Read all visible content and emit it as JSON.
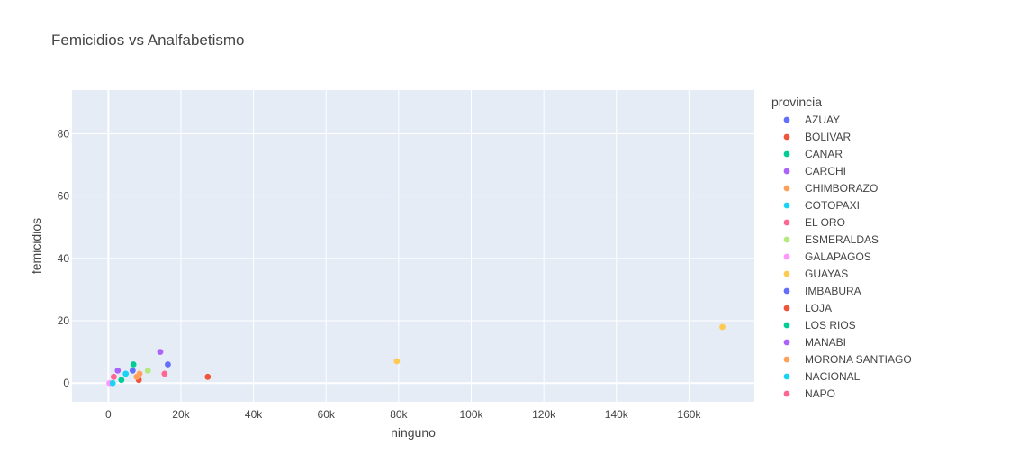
{
  "chart_data": {
    "type": "scatter",
    "title": "Femicidios vs Analfabetismo",
    "xlabel": "ninguno",
    "ylabel": "femicidios",
    "xlim": [
      -10000,
      178000
    ],
    "ylim": [
      -6,
      94
    ],
    "x_ticks": [
      0,
      20000,
      40000,
      60000,
      80000,
      100000,
      120000,
      140000,
      160000
    ],
    "x_tick_labels": [
      "0",
      "20k",
      "40k",
      "60k",
      "80k",
      "100k",
      "120k",
      "140k",
      "160k"
    ],
    "y_ticks": [
      0,
      20,
      40,
      60,
      80
    ],
    "y_tick_labels": [
      "0",
      "20",
      "40",
      "60",
      "80"
    ],
    "grid": true,
    "legend_title": "provincia",
    "legend_position": "right",
    "plot_background": "#E5ECF6",
    "series": [
      {
        "name": "AZUAY",
        "color": "#636EFA",
        "points": [
          [
            6700,
            4
          ]
        ]
      },
      {
        "name": "BOLIVAR",
        "color": "#EF553B",
        "points": [
          [
            27400,
            2
          ]
        ]
      },
      {
        "name": "CANAR",
        "color": "#00CC96",
        "points": [
          [
            6900,
            6
          ]
        ]
      },
      {
        "name": "CARCHI",
        "color": "#AB63FA",
        "points": [
          [
            2600,
            4
          ]
        ]
      },
      {
        "name": "CHIMBORAZO",
        "color": "#FFA15A",
        "points": [
          [
            8600,
            3
          ]
        ]
      },
      {
        "name": "COTOPAXI",
        "color": "#19D3F3",
        "points": [
          [
            4800,
            3
          ]
        ]
      },
      {
        "name": "EL ORO",
        "color": "#FF6692",
        "points": [
          [
            15500,
            3
          ]
        ]
      },
      {
        "name": "ESMERALDAS",
        "color": "#B6E880",
        "points": [
          [
            10900,
            4
          ]
        ]
      },
      {
        "name": "GALAPAGOS",
        "color": "#FF97FF",
        "points": [
          [
            300,
            0
          ]
        ]
      },
      {
        "name": "GUAYAS",
        "color": "#FECB52",
        "points": [
          [
            169200,
            18
          ],
          [
            79500,
            7
          ]
        ]
      },
      {
        "name": "IMBABURA",
        "color": "#636EFA",
        "points": [
          [
            16400,
            6
          ]
        ]
      },
      {
        "name": "LOJA",
        "color": "#EF553B",
        "points": [
          [
            8400,
            1
          ]
        ]
      },
      {
        "name": "LOS RIOS",
        "color": "#00CC96",
        "points": [
          [
            3600,
            1
          ]
        ]
      },
      {
        "name": "MANABI",
        "color": "#AB63FA",
        "points": [
          [
            14300,
            10
          ]
        ]
      },
      {
        "name": "MORONA SANTIAGO",
        "color": "#FFA15A",
        "points": [
          [
            7800,
            2
          ]
        ]
      },
      {
        "name": "NACIONAL",
        "color": "#19D3F3",
        "points": [
          [
            1200,
            0
          ]
        ]
      },
      {
        "name": "NAPO",
        "color": "#FF6692",
        "points": [
          [
            1500,
            2
          ]
        ]
      }
    ]
  }
}
